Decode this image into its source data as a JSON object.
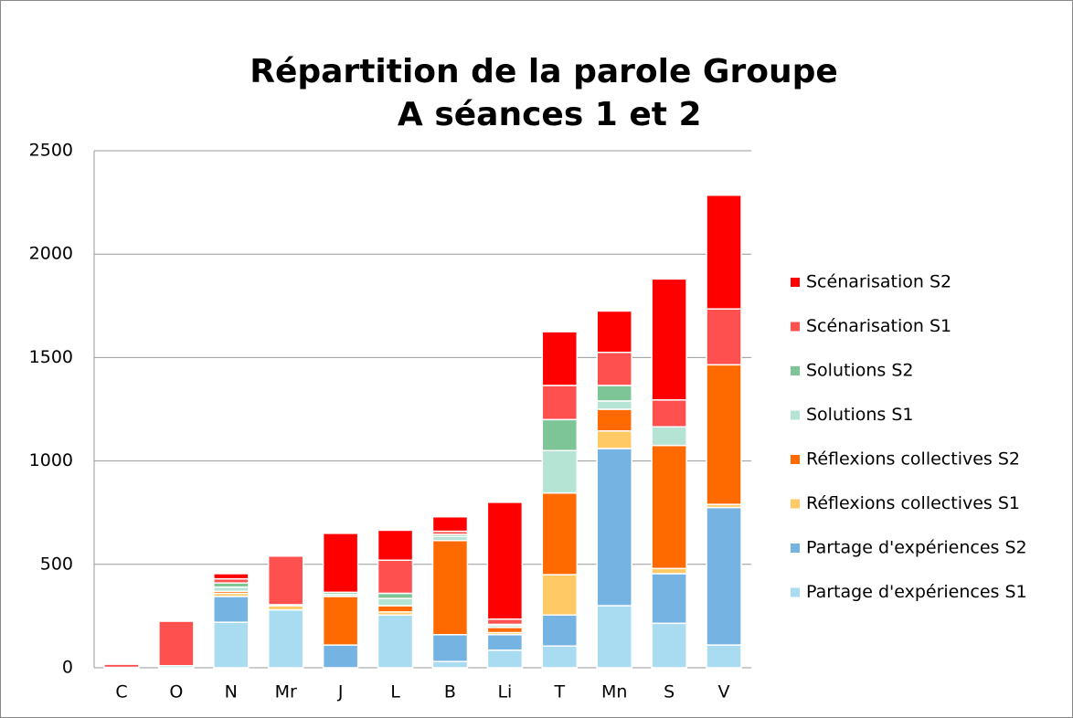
{
  "chart_data": {
    "type": "stacked_bar",
    "title": "Répartition de la parole Groupe A séances 1 et 2",
    "categories": [
      "C",
      "O",
      "N",
      "Mr",
      "J",
      "L",
      "B",
      "Li",
      "T",
      "Mn",
      "S",
      "V"
    ],
    "series": [
      {
        "name": "Partage d'expériences S1",
        "color": "#a9dcf0",
        "values": [
          2,
          10,
          220,
          280,
          0,
          255,
          30,
          85,
          105,
          300,
          215,
          110
        ]
      },
      {
        "name": "Partage d'expériences S2",
        "color": "#74b3e2",
        "values": [
          0,
          0,
          125,
          0,
          110,
          0,
          130,
          75,
          150,
          760,
          240,
          665
        ]
      },
      {
        "name": "Réflexions collectives S1",
        "color": "#ffc965",
        "values": [
          0,
          0,
          15,
          20,
          0,
          15,
          0,
          10,
          195,
          85,
          25,
          15
        ]
      },
      {
        "name": "Réflexions collectives S2",
        "color": "#ff6a00",
        "values": [
          0,
          0,
          10,
          0,
          235,
          30,
          455,
          25,
          395,
          105,
          595,
          675
        ]
      },
      {
        "name": "Solutions S1",
        "color": "#b5e4d5",
        "values": [
          0,
          0,
          20,
          5,
          10,
          35,
          20,
          10,
          205,
          40,
          90,
          0
        ]
      },
      {
        "name": "Solutions S2",
        "color": "#7dc497",
        "values": [
          0,
          0,
          20,
          0,
          10,
          25,
          10,
          5,
          150,
          75,
          0,
          0
        ]
      },
      {
        "name": "Scénarisation S1",
        "color": "#ff5050",
        "values": [
          15,
          215,
          20,
          235,
          0,
          160,
          15,
          25,
          165,
          160,
          130,
          270
        ]
      },
      {
        "name": "Scénarisation S2",
        "color": "#ff0000",
        "values": [
          0,
          0,
          25,
          0,
          285,
          145,
          70,
          565,
          260,
          200,
          585,
          550
        ]
      }
    ],
    "ylim": [
      0,
      2500
    ],
    "yticks": [
      0,
      500,
      1000,
      1500,
      2000,
      2500
    ],
    "grid": true,
    "legend": "right"
  }
}
